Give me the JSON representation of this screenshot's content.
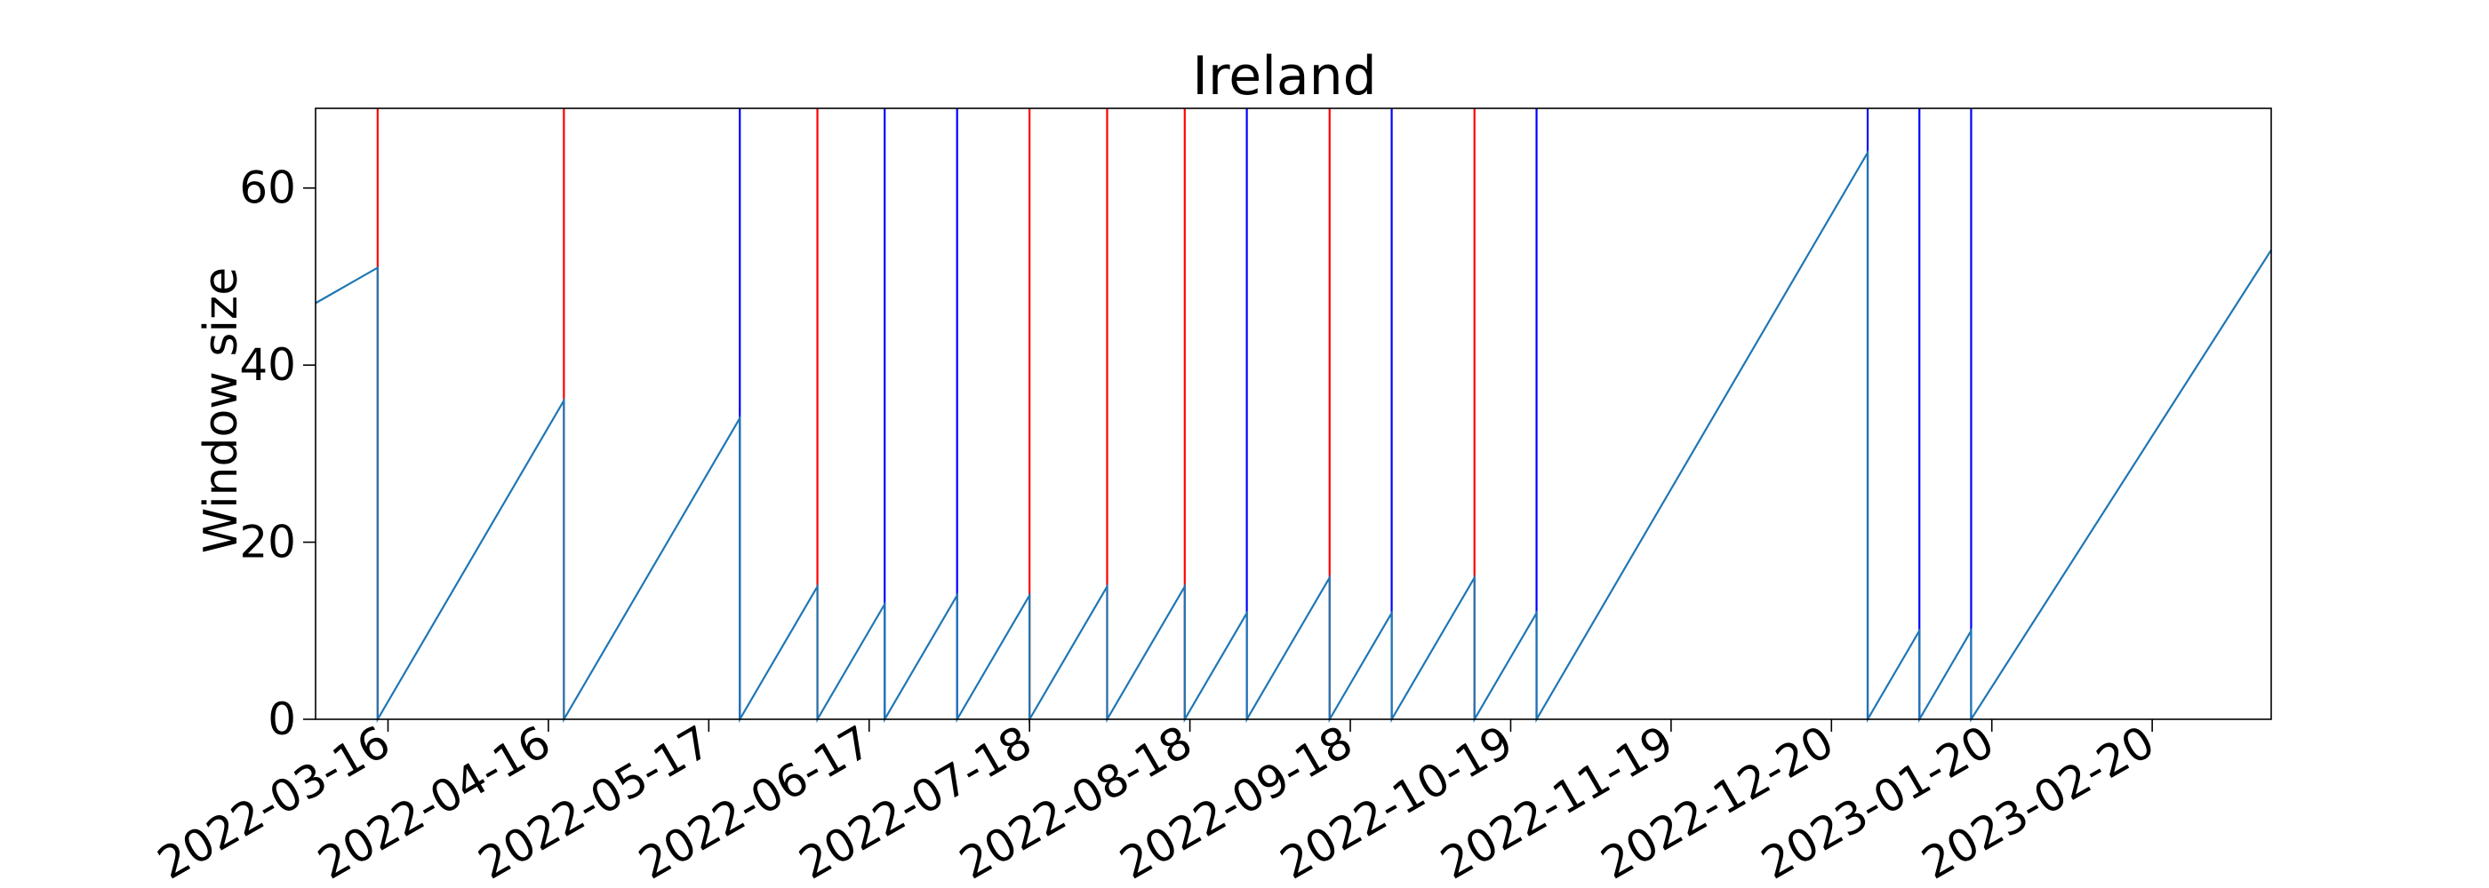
{
  "chart_data": {
    "type": "line",
    "title": "Ireland",
    "xlabel": "",
    "ylabel": "Window size",
    "xlim": [
      "2022-03-02",
      "2023-03-15"
    ],
    "ylim": [
      0,
      69
    ],
    "x_ticks": [
      "2022-03-16",
      "2022-04-16",
      "2022-05-17",
      "2022-06-17",
      "2022-07-18",
      "2022-08-18",
      "2022-09-18",
      "2022-10-19",
      "2022-11-19",
      "2022-12-20",
      "2023-01-20",
      "2023-02-20"
    ],
    "y_ticks": [
      0,
      20,
      40,
      60
    ],
    "grid": false,
    "series": [
      {
        "color": "#1f77b4",
        "points": [
          [
            "2022-03-02",
            47
          ],
          [
            "2022-03-14",
            51
          ],
          [
            "2022-03-14",
            0
          ],
          [
            "2022-04-19",
            36
          ],
          [
            "2022-04-19",
            0
          ],
          [
            "2022-05-23",
            34
          ],
          [
            "2022-05-23",
            0
          ],
          [
            "2022-06-07",
            15
          ],
          [
            "2022-06-07",
            0
          ],
          [
            "2022-06-20",
            13
          ],
          [
            "2022-06-20",
            0
          ],
          [
            "2022-07-04",
            14
          ],
          [
            "2022-07-04",
            0
          ],
          [
            "2022-07-18",
            14
          ],
          [
            "2022-07-18",
            0
          ],
          [
            "2022-08-02",
            15
          ],
          [
            "2022-08-02",
            0
          ],
          [
            "2022-08-17",
            15
          ],
          [
            "2022-08-17",
            0
          ],
          [
            "2022-08-29",
            12
          ],
          [
            "2022-08-29",
            0
          ],
          [
            "2022-09-14",
            16
          ],
          [
            "2022-09-14",
            0
          ],
          [
            "2022-09-26",
            12
          ],
          [
            "2022-09-26",
            0
          ],
          [
            "2022-10-12",
            16
          ],
          [
            "2022-10-12",
            0
          ],
          [
            "2022-10-24",
            12
          ],
          [
            "2022-10-24",
            0
          ],
          [
            "2022-12-27",
            64
          ],
          [
            "2022-12-27",
            0
          ],
          [
            "2023-01-06",
            10
          ],
          [
            "2023-01-06",
            0
          ],
          [
            "2023-01-16",
            10
          ],
          [
            "2023-01-16",
            0
          ],
          [
            "2023-03-15",
            53
          ]
        ]
      }
    ],
    "vertical_lines": [
      {
        "x": "2022-03-14",
        "color": "#ff0000"
      },
      {
        "x": "2022-04-19",
        "color": "#ff0000"
      },
      {
        "x": "2022-05-23",
        "color": "#0000ff"
      },
      {
        "x": "2022-06-07",
        "color": "#ff0000"
      },
      {
        "x": "2022-06-20",
        "color": "#0000ff"
      },
      {
        "x": "2022-07-04",
        "color": "#0000ff"
      },
      {
        "x": "2022-07-18",
        "color": "#ff0000"
      },
      {
        "x": "2022-08-02",
        "color": "#ff0000"
      },
      {
        "x": "2022-08-17",
        "color": "#ff0000"
      },
      {
        "x": "2022-08-29",
        "color": "#0000ff"
      },
      {
        "x": "2022-09-14",
        "color": "#ff0000"
      },
      {
        "x": "2022-09-26",
        "color": "#0000ff"
      },
      {
        "x": "2022-10-12",
        "color": "#ff0000"
      },
      {
        "x": "2022-10-24",
        "color": "#0000ff"
      },
      {
        "x": "2022-12-27",
        "color": "#0000ff"
      },
      {
        "x": "2023-01-06",
        "color": "#0000ff"
      },
      {
        "x": "2023-01-16",
        "color": "#0000ff"
      }
    ]
  }
}
